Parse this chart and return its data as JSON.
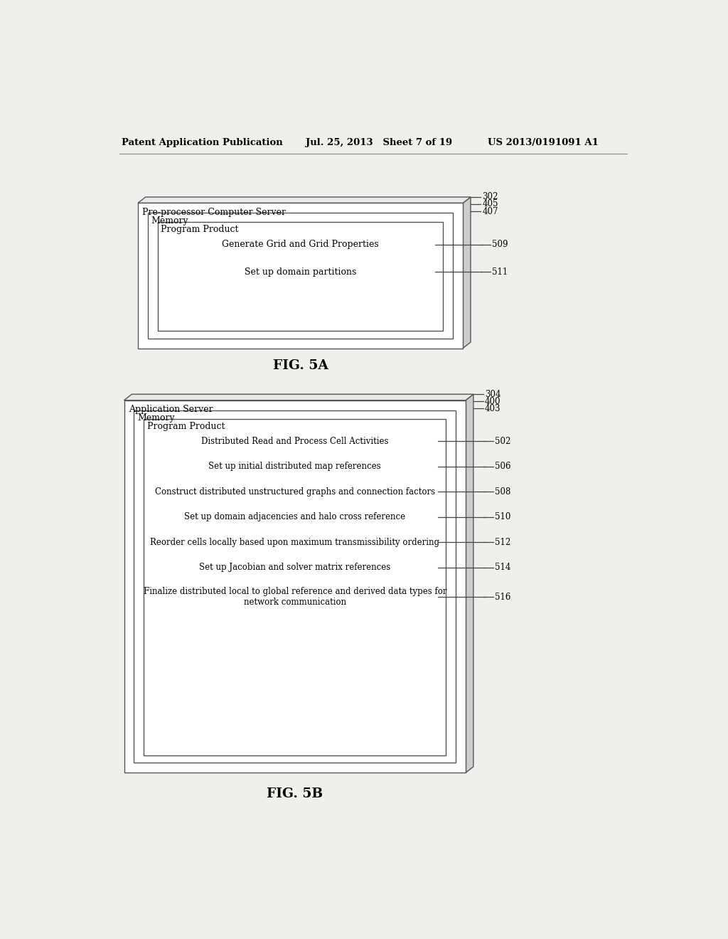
{
  "bg_color": "#ffffff",
  "page_bg": "#f0efeb",
  "header_left": "Patent Application Publication",
  "header_center": "Jul. 25, 2013   Sheet 7 of 19",
  "header_right": "US 2013/0191091 A1",
  "fig5a": {
    "title": "FIG. 5A",
    "outer_label": "Pre-processor Computer Server",
    "outer_ref": "302",
    "mid_label": "Memory",
    "mid_ref": "405",
    "inner_label": "Program Product",
    "inner_ref": "407",
    "boxes": [
      {
        "text": "Generate Grid and Grid Properties",
        "ref": "509"
      },
      {
        "text": "Set up domain partitions",
        "ref": "511"
      }
    ]
  },
  "fig5b": {
    "title": "FIG. 5B",
    "outer_label": "Application Server",
    "outer_ref": "304",
    "mid_label": "Memory",
    "mid_ref": "400",
    "inner_label": "Program Product",
    "inner_ref": "403",
    "boxes": [
      {
        "text": "Distributed Read and Process Cell Activities",
        "ref": "502"
      },
      {
        "text": "Set up initial distributed map references",
        "ref": "506"
      },
      {
        "text": "Construct distributed unstructured graphs and connection factors",
        "ref": "508"
      },
      {
        "text": "Set up domain adjacencies and halo cross reference",
        "ref": "510"
      },
      {
        "text": "Reorder cells locally based upon maximum transmissibility ordering",
        "ref": "512"
      },
      {
        "text": "Set up Jacobian and solver matrix references",
        "ref": "514"
      },
      {
        "text": "Finalize distributed local to global reference and derived data types for\nnetwork communication",
        "ref": "516"
      }
    ]
  }
}
